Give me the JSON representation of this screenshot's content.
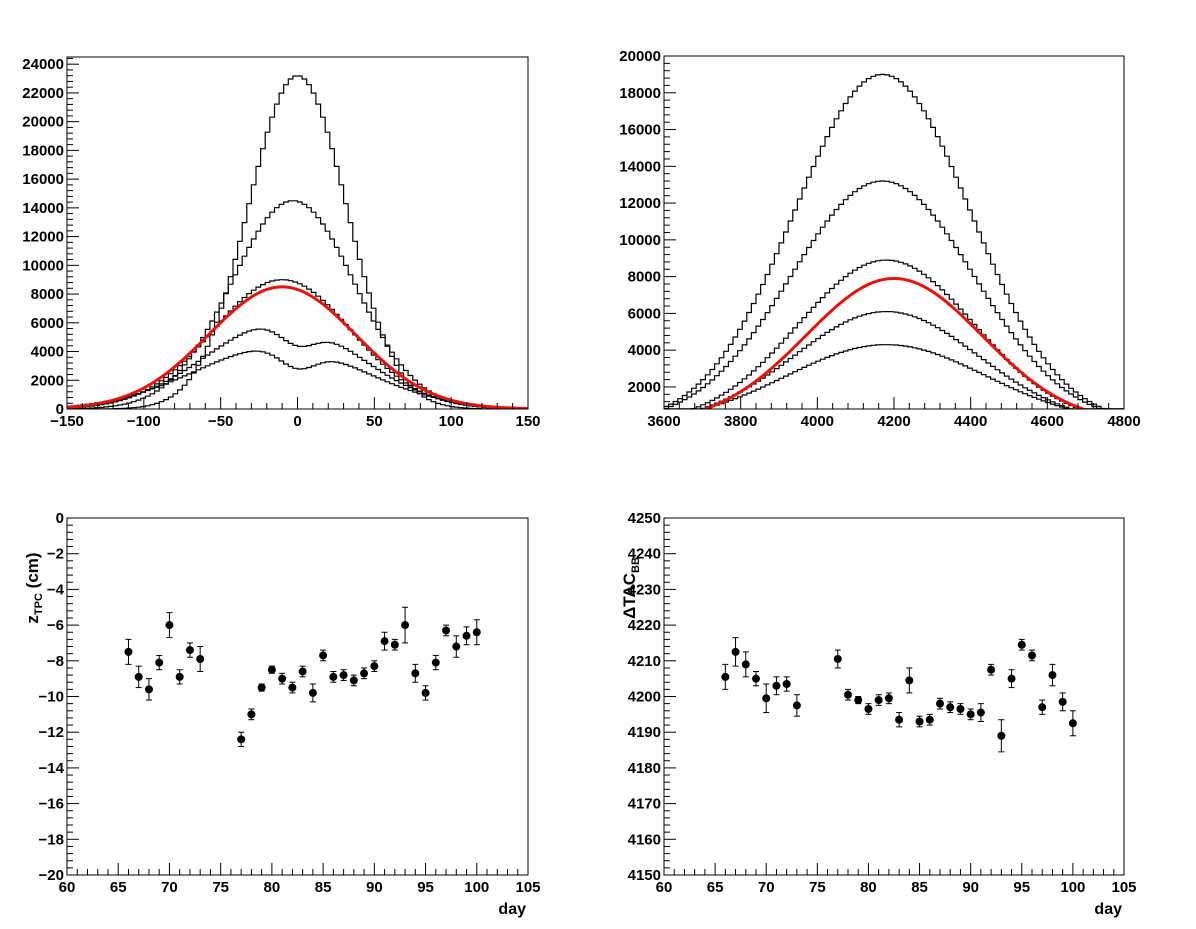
{
  "chart_data": [
    {
      "type": "line",
      "xlim": [
        -150,
        150
      ],
      "ylim": [
        0,
        24500
      ],
      "x_ticks": [
        -150,
        -100,
        -50,
        0,
        50,
        100,
        150
      ],
      "x_tick_labels": [
        "−150",
        "−100",
        "−50",
        "0",
        "50",
        "100",
        "150"
      ],
      "y_ticks": [
        0,
        2000,
        4000,
        6000,
        8000,
        10000,
        12000,
        14000,
        16000,
        18000,
        20000,
        22000,
        24000
      ],
      "y_tick_labels": [
        "0",
        "2000",
        "4000",
        "6000",
        "8000",
        "10000",
        "12000",
        "14000",
        "16000",
        "18000",
        "20000",
        "22000",
        "24000"
      ],
      "bin_width": 3,
      "series": [
        {
          "style": "step",
          "model": "dip",
          "peak": 4300,
          "dip_center": 0,
          "dip_depth": 1400,
          "mu": -12,
          "sigma": 55
        },
        {
          "style": "step",
          "model": "dip",
          "peak": 6000,
          "dip_center": 0,
          "dip_depth": 1500,
          "mu": -10,
          "sigma": 50
        },
        {
          "style": "step",
          "model": "gauss",
          "peak": 9000,
          "mu": -10,
          "sigma": 45
        },
        {
          "style": "step",
          "model": "gauss",
          "peak": 14500,
          "mu": -3,
          "sigma": 40
        },
        {
          "style": "step",
          "model": "gauss",
          "peak": 23200,
          "mu": 0,
          "sigma": 32
        },
        {
          "style": "fit",
          "model": "gauss",
          "peak": 8500,
          "mu": -10,
          "sigma": 48,
          "color": "#e8130c"
        }
      ],
      "grid": false
    },
    {
      "type": "line",
      "xlim": [
        3600,
        4800
      ],
      "ylim": [
        800,
        20000
      ],
      "x_ticks": [
        3600,
        3800,
        4000,
        4200,
        4400,
        4600,
        4800
      ],
      "x_tick_labels": [
        "3600",
        "3800",
        "4000",
        "4200",
        "4400",
        "4600",
        "4800"
      ],
      "y_ticks": [
        2000,
        4000,
        6000,
        8000,
        10000,
        12000,
        14000,
        16000,
        18000,
        20000
      ],
      "y_tick_labels": [
        "2000",
        "4000",
        "6000",
        "8000",
        "10000",
        "12000",
        "14000",
        "16000",
        "18000",
        "20000"
      ],
      "bin_width": 12,
      "series": [
        {
          "style": "step",
          "model": "gauss",
          "peak": 4300,
          "mu": 4180,
          "sigma": 260
        },
        {
          "style": "step",
          "model": "gauss",
          "peak": 6100,
          "mu": 4180,
          "sigma": 240
        },
        {
          "style": "step",
          "model": "gauss",
          "peak": 8900,
          "mu": 4180,
          "sigma": 230
        },
        {
          "style": "step",
          "model": "gauss",
          "peak": 13200,
          "mu": 4170,
          "sigma": 240
        },
        {
          "style": "step",
          "model": "gauss",
          "peak": 19000,
          "mu": 4170,
          "sigma": 230
        },
        {
          "style": "fit",
          "model": "gauss",
          "peak": 7900,
          "mu": 4200,
          "sigma": 230,
          "color": "#e8130c",
          "xrange": [
            3640,
            4755
          ]
        }
      ],
      "grid": false
    },
    {
      "type": "scatter",
      "xlabel": "day",
      "ylabel_main": "z",
      "ylabel_sub": "TPC",
      "ylabel_unit": " (cm)",
      "xlim": [
        60,
        105
      ],
      "ylim": [
        -20,
        0
      ],
      "x_ticks": [
        60,
        65,
        70,
        75,
        80,
        85,
        90,
        95,
        100,
        105
      ],
      "x_tick_labels": [
        "60",
        "65",
        "70",
        "75",
        "80",
        "85",
        "90",
        "95",
        "100",
        "105"
      ],
      "y_ticks": [
        -20,
        -18,
        -16,
        -14,
        -12,
        -10,
        -8,
        -6,
        -4,
        -2,
        0
      ],
      "y_tick_labels": [
        "−20",
        "−18",
        "−16",
        "−14",
        "−12",
        "−10",
        "−8",
        "−6",
        "−4",
        "−2",
        "0"
      ],
      "x": [
        66,
        67,
        68,
        69,
        70,
        71,
        72,
        73,
        77,
        78,
        79,
        80,
        81,
        82,
        83,
        84,
        85,
        86,
        87,
        88,
        89,
        90,
        91,
        92,
        93,
        94,
        95,
        96,
        97,
        98,
        99,
        100
      ],
      "y": [
        -7.5,
        -8.9,
        -9.6,
        -8.1,
        -6.0,
        -8.9,
        -7.4,
        -7.9,
        -12.4,
        -11.0,
        -9.5,
        -8.5,
        -9.0,
        -9.5,
        -8.6,
        -9.8,
        -7.7,
        -8.9,
        -8.8,
        -9.1,
        -8.7,
        -8.3,
        -6.9,
        -7.1,
        -6.0,
        -8.7,
        -9.8,
        -8.1,
        -6.3,
        -7.2,
        -6.6,
        -6.4
      ],
      "err": [
        0.7,
        0.6,
        0.6,
        0.4,
        0.7,
        0.4,
        0.4,
        0.7,
        0.4,
        0.3,
        0.2,
        0.2,
        0.3,
        0.3,
        0.3,
        0.5,
        0.3,
        0.3,
        0.3,
        0.3,
        0.3,
        0.3,
        0.5,
        0.3,
        1.0,
        0.5,
        0.4,
        0.4,
        0.3,
        0.6,
        0.5,
        0.7
      ]
    },
    {
      "type": "scatter",
      "xlabel": "day",
      "ylabel_main": "ΔTAC",
      "ylabel_sub": "BB",
      "ylabel_unit": "",
      "xlim": [
        60,
        105
      ],
      "ylim": [
        4150,
        4250
      ],
      "x_ticks": [
        60,
        65,
        70,
        75,
        80,
        85,
        90,
        95,
        100,
        105
      ],
      "x_tick_labels": [
        "60",
        "65",
        "70",
        "75",
        "80",
        "85",
        "90",
        "95",
        "100",
        "105"
      ],
      "y_ticks": [
        4150,
        4160,
        4170,
        4180,
        4190,
        4200,
        4210,
        4220,
        4230,
        4240,
        4250
      ],
      "y_tick_labels": [
        "4150",
        "4160",
        "4170",
        "4180",
        "4190",
        "4200",
        "4210",
        "4220",
        "4230",
        "4240",
        "4250"
      ],
      "x": [
        66,
        67,
        68,
        69,
        70,
        71,
        72,
        73,
        77,
        78,
        79,
        80,
        81,
        82,
        83,
        84,
        85,
        86,
        87,
        88,
        89,
        90,
        91,
        92,
        93,
        94,
        95,
        96,
        97,
        98,
        99,
        100
      ],
      "y": [
        4205.5,
        4212.5,
        4209.0,
        4205.0,
        4199.5,
        4203.0,
        4203.5,
        4197.5,
        4210.5,
        4200.5,
        4199.0,
        4196.5,
        4199.0,
        4199.5,
        4193.5,
        4204.5,
        4193.0,
        4193.5,
        4198.0,
        4197.0,
        4196.5,
        4195.0,
        4195.5,
        4207.5,
        4189.0,
        4205.0,
        4214.5,
        4211.5,
        4197.0,
        4206.0,
        4198.5,
        4192.5
      ],
      "err": [
        3.5,
        4.0,
        3.5,
        2.0,
        4.0,
        2.5,
        2.0,
        3.0,
        2.5,
        1.5,
        1.0,
        1.5,
        1.5,
        1.5,
        2.0,
        3.5,
        1.5,
        1.5,
        1.5,
        1.5,
        1.5,
        1.5,
        2.5,
        1.5,
        4.5,
        2.5,
        1.5,
        1.5,
        2.0,
        3.0,
        2.5,
        3.5
      ]
    }
  ]
}
